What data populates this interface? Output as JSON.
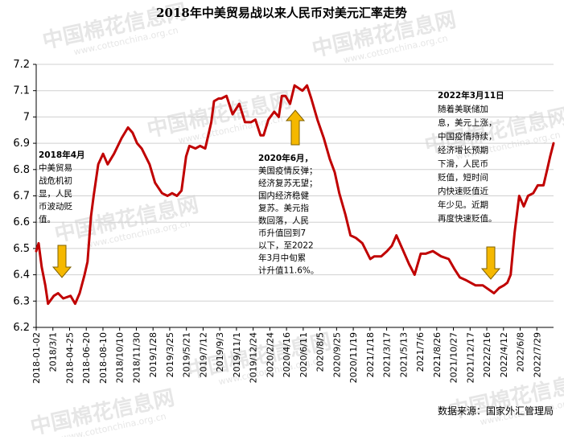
{
  "chart_data": {
    "type": "line",
    "title": "2018年中美贸易战以来人民币对美元汇率走势",
    "source": "数据来源：国家外汇管理局",
    "watermark": {
      "brand": "中国棉花信息网",
      "url": "www.cottonchina.org.cn"
    },
    "ylim": [
      6.2,
      7.2
    ],
    "y_ticks": [
      "6.2",
      "6.3",
      "6.4",
      "6.5",
      "6.6",
      "6.7",
      "6.8",
      "6.9",
      "7",
      "7.1",
      "7.2"
    ],
    "x_ticks": [
      "2018-01-02",
      "2018/3/1",
      "2018-04-25",
      "2018-06-20",
      "2018-08-10",
      "2018/10/10",
      "2018/11/30",
      "2019/1/28",
      "2019/3/25",
      "2019/5/21",
      "2019/7/12",
      "2019/9/3",
      "2019/11/1",
      "2019/12/24",
      "2020/2/24",
      "2020/4/16",
      "2020/6/11",
      "2020/8/5",
      "2020/9/25",
      "2020/11/19",
      "2021/1/18",
      "2021/3/17",
      "2021/5/13",
      "2021/7/6",
      "2021/8/26",
      "2021/10/27",
      "2021/12/17",
      "2022/2/16",
      "2022/4/12",
      "2022/6/8",
      "2022/7/29"
    ],
    "grid": "horizontal",
    "series": [
      {
        "color": "#c00000",
        "x": [
          "2018-01-02",
          "2018-01-10",
          "2018-01-20",
          "2018-02-01",
          "2018-02-10",
          "2018-03-01",
          "2018-03-15",
          "2018-04-01",
          "2018-04-25",
          "2018-05-10",
          "2018-05-25",
          "2018-06-10",
          "2018-06-20",
          "2018-07-01",
          "2018-07-10",
          "2018-07-25",
          "2018-08-10",
          "2018-08-25",
          "2018-09-15",
          "2018-10-10",
          "2018-10-31",
          "2018-11-15",
          "2018-11-30",
          "2018-12-15",
          "2019-01-10",
          "2019-01-28",
          "2019-02-20",
          "2019-03-10",
          "2019-03-25",
          "2019-04-10",
          "2019-04-25",
          "2019-05-10",
          "2019-05-21",
          "2019-06-10",
          "2019-06-25",
          "2019-07-12",
          "2019-08-01",
          "2019-08-10",
          "2019-08-25",
          "2019-09-03",
          "2019-09-20",
          "2019-10-10",
          "2019-11-01",
          "2019-11-20",
          "2019-12-10",
          "2019-12-24",
          "2020-01-10",
          "2020-01-20",
          "2020-02-05",
          "2020-02-24",
          "2020-03-10",
          "2020-03-20",
          "2020-04-01",
          "2020-04-16",
          "2020-05-01",
          "2020-05-27",
          "2020-06-11",
          "2020-06-25",
          "2020-07-15",
          "2020-08-05",
          "2020-08-25",
          "2020-09-10",
          "2020-09-25",
          "2020-10-15",
          "2020-11-01",
          "2020-11-19",
          "2020-12-10",
          "2021-01-05",
          "2021-01-18",
          "2021-02-10",
          "2021-03-01",
          "2021-03-17",
          "2021-04-01",
          "2021-04-20",
          "2021-05-13",
          "2021-05-31",
          "2021-06-20",
          "2021-07-06",
          "2021-07-30",
          "2021-08-26",
          "2021-09-20",
          "2021-10-10",
          "2021-10-27",
          "2021-11-15",
          "2021-12-01",
          "2021-12-17",
          "2022-01-10",
          "2022-02-16",
          "2022-03-05",
          "2022-03-21",
          "2022-04-01",
          "2022-04-12",
          "2022-04-25",
          "2022-05-10",
          "2022-05-25",
          "2022-06-08",
          "2022-06-25",
          "2022-07-10",
          "2022-07-29",
          "2022-08-10",
          "2022-08-20",
          "2022-08-31"
        ],
        "y": [
          6.49,
          6.52,
          6.43,
          6.36,
          6.29,
          6.32,
          6.33,
          6.31,
          6.32,
          6.29,
          6.33,
          6.4,
          6.45,
          6.62,
          6.7,
          6.82,
          6.86,
          6.82,
          6.86,
          6.92,
          6.96,
          6.94,
          6.9,
          6.88,
          6.82,
          6.75,
          6.71,
          6.7,
          6.71,
          6.7,
          6.72,
          6.85,
          6.89,
          6.88,
          6.89,
          6.88,
          6.98,
          7.06,
          7.07,
          7.07,
          7.08,
          7.01,
          7.05,
          6.98,
          6.98,
          6.99,
          6.93,
          6.93,
          6.99,
          7.02,
          7.0,
          7.08,
          7.08,
          7.05,
          7.12,
          7.1,
          7.12,
          7.07,
          6.99,
          6.92,
          6.84,
          6.79,
          6.71,
          6.63,
          6.55,
          6.54,
          6.52,
          6.46,
          6.47,
          6.47,
          6.49,
          6.51,
          6.55,
          6.5,
          6.44,
          6.4,
          6.48,
          6.48,
          6.49,
          6.47,
          6.46,
          6.42,
          6.39,
          6.38,
          6.37,
          6.36,
          6.36,
          6.33,
          6.35,
          6.36,
          6.37,
          6.4,
          6.56,
          6.7,
          6.66,
          6.7,
          6.71,
          6.74,
          6.74,
          6.8,
          6.85,
          6.9
        ]
      }
    ],
    "annotations": [
      {
        "lines": [
          "2018年4月",
          "中美贸易",
          "战危机初",
          "显，人民",
          "币波动贬",
          "值。"
        ]
      },
      {
        "lines": [
          "2020年6月，",
          "美国疫情反弹；",
          "经济复苏无望；",
          "国内经济稳健",
          "复苏。美元指",
          "数回落，人民",
          "币升值回到7",
          "以下，至2022",
          "年3月中旬累",
          "计升值11.6%。"
        ]
      },
      {
        "lines": [
          "2022年3月11日",
          "随着美联储加",
          "息，美元上涨，",
          "中国疫情持续，",
          "经济增长预期",
          "下滑，人民币",
          "贬值，短时间",
          "内快速贬值近",
          "年少见。近期",
          "再度快速贬值。"
        ]
      }
    ]
  }
}
